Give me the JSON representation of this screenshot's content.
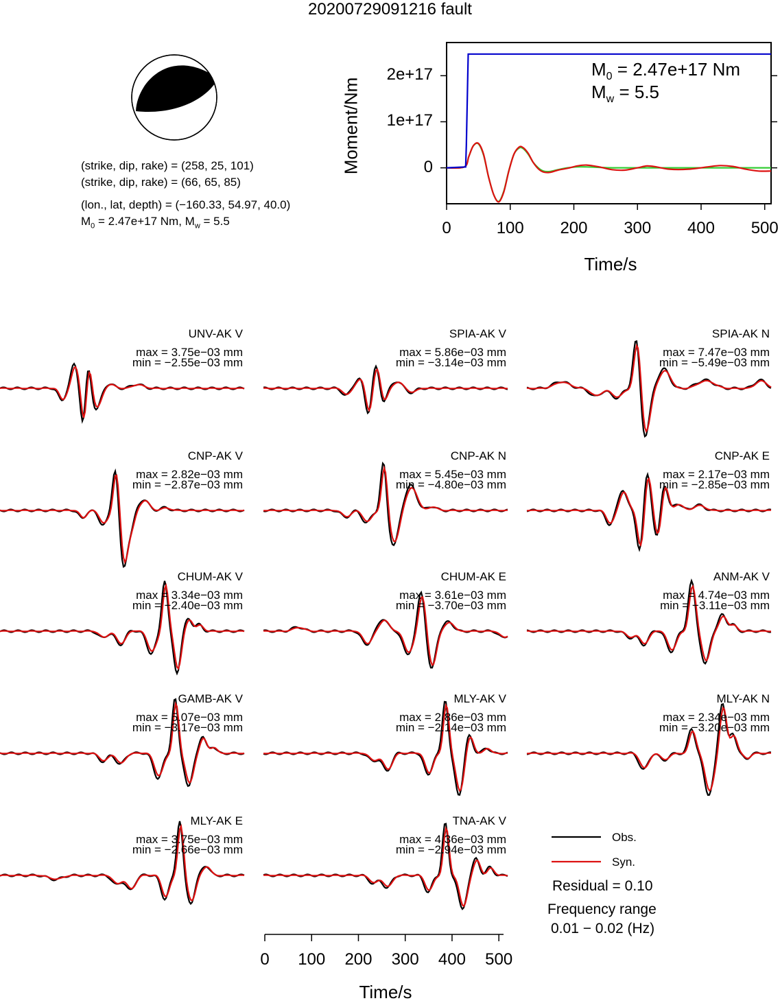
{
  "title": "20200729091216 fault",
  "mechanism": {
    "np1": "(strike, dip, rake) = (258, 25, 101)",
    "np2": "(strike, dip, rake) = (66, 65, 85)",
    "location": "(lon., lat, depth) = (−160.33, 54.97, 40.0)",
    "m0_prefix": "M",
    "m0_sub": "0",
    "m0_rest": " = 2.47e+17 Nm, M",
    "mw_sub": "w",
    "mw_rest": " = 5.5"
  },
  "chart_data": [
    {
      "type": "line",
      "name": "moment-rate",
      "ylabel": "Moment/Nm",
      "xlabel": "Time/s",
      "xlim": [
        0,
        510
      ],
      "ylim": [
        -7.8e+16,
        2.72e+17
      ],
      "xticks": [
        0,
        100,
        200,
        300,
        400,
        500
      ],
      "xtick_labels": [
        "0",
        "100",
        "200",
        "300",
        "400",
        "500"
      ],
      "yticks": [
        0,
        1e+17,
        2e+17
      ],
      "ytick_labels": [
        "0",
        "1e+17",
        "2e+17"
      ],
      "annotation": {
        "m0_prefix": "M",
        "m0_sub": "0",
        "m0_rest": " = 2.47e+17 Nm",
        "mw_prefix": "M",
        "mw_sub": "w",
        "mw_rest": " = 5.5"
      },
      "series": [
        {
          "color": "#0000cc",
          "x": [
            0,
            30,
            31,
            34,
            510
          ],
          "y": [
            0,
            2000000000000000.0,
            5e+16,
            2.47e+17,
            2.47e+17
          ]
        },
        {
          "color": "#33cc33",
          "x": [
            0,
            28,
            35,
            42,
            50,
            58,
            66,
            74,
            82,
            90,
            98,
            106,
            114,
            120,
            128,
            136,
            144,
            152,
            162,
            175,
            190,
            205,
            220,
            240,
            260,
            280,
            300,
            330,
            360,
            400,
            450,
            510
          ],
          "y": [
            0,
            2000000000000000.0,
            2.5e+16,
            4.8e+16,
            5.2e+16,
            2.8e+16,
            -2e+16,
            -5.8e+16,
            -7.3e+16,
            -5e+16,
            -5000000000000000.0,
            3e+16,
            4.3e+16,
            4.2e+16,
            3e+16,
            1.2e+16,
            0.0,
            -7000000000000000.0,
            -8000000000000000.0,
            -4000000000000000.0,
            0.0,
            2000000000000000.0,
            2000000000000000.0,
            1000000000000000.0,
            0.0,
            0.0,
            0.0,
            0.0,
            0.0,
            0.0,
            0.0,
            0.0
          ]
        },
        {
          "color": "#dd1111",
          "x": [
            0,
            28,
            35,
            42,
            50,
            58,
            66,
            74,
            82,
            90,
            98,
            106,
            114,
            120,
            128,
            136,
            144,
            152,
            162,
            175,
            190,
            205,
            220,
            240,
            260,
            280,
            300,
            315,
            330,
            350,
            380,
            410,
            430,
            450,
            470,
            490,
            510
          ],
          "y": [
            0,
            2000000000000000.0,
            2.5e+16,
            4.8e+16,
            5.3e+16,
            3e+16,
            -2e+16,
            -5.8e+16,
            -7.4e+16,
            -5.2e+16,
            -6000000000000000.0,
            3e+16,
            4.5e+16,
            4.4e+16,
            3.2e+16,
            1.2e+16,
            -2000000000000000.0,
            -9000000000000000.0,
            -1e+16,
            -5000000000000000.0,
            -1000000000000000.0,
            4000000000000000.0,
            6000000000000000.0,
            2000000000000000.0,
            -4000000000000000.0,
            -5000000000000000.0,
            0.0,
            4000000000000000.0,
            2000000000000000.0,
            -3000000000000000.0,
            -3000000000000000.0,
            2000000000000000.0,
            5000000000000000.0,
            3000000000000000.0,
            -3000000000000000.0,
            -7000000000000000.0,
            -7000000000000000.0
          ]
        }
      ]
    },
    {
      "type": "line",
      "name": "waveforms",
      "xlabel": "Time/s",
      "xlim": [
        0,
        510
      ],
      "xticks": [
        0,
        100,
        200,
        300,
        400,
        500
      ],
      "xtick_labels": [
        "0",
        "100",
        "200",
        "300",
        "400",
        "500"
      ],
      "legend": {
        "obs": "Obs.",
        "syn": "Syn.",
        "residual": "Residual = 0.10",
        "freq_title": "Frequency range",
        "freq_value": "0.01 − 0.02 (Hz)"
      },
      "series": [
        {
          "name": "UNV-AK V",
          "max": "max = 3.75e−03 mm",
          "min": "min = −2.55e−03 mm"
        },
        {
          "name": "SPIA-AK V",
          "max": "max = 5.86e−03 mm",
          "min": "min = −3.14e−03 mm"
        },
        {
          "name": "SPIA-AK N",
          "max": "max = 7.47e−03 mm",
          "min": "min = −5.49e−03 mm"
        },
        {
          "name": "CNP-AK V",
          "max": "max = 2.82e−03 mm",
          "min": "min = −2.87e−03 mm"
        },
        {
          "name": "CNP-AK N",
          "max": "max = 5.45e−03 mm",
          "min": "min = −4.80e−03 mm"
        },
        {
          "name": "CNP-AK E",
          "max": "max = 2.17e−03 mm",
          "min": "min = −2.85e−03 mm"
        },
        {
          "name": "CHUM-AK V",
          "max": "max = 3.34e−03 mm",
          "min": "min = −2.40e−03 mm"
        },
        {
          "name": "CHUM-AK E",
          "max": "max = 3.61e−03 mm",
          "min": "min = −3.70e−03 mm"
        },
        {
          "name": "ANM-AK V",
          "max": "max = 4.74e−03 mm",
          "min": "min = −3.11e−03 mm"
        },
        {
          "name": "GAMB-AK V",
          "max": "max = 5.07e−03 mm",
          "min": "min = −3.17e−03 mm"
        },
        {
          "name": "MLY-AK V",
          "max": "max = 2.86e−03 mm",
          "min": "min = −2.14e−03 mm"
        },
        {
          "name": "MLY-AK N",
          "max": "max = 2.34e−03 mm",
          "min": "min = −3.20e−03 mm"
        },
        {
          "name": "MLY-AK E",
          "max": "max = 3.75e−03 mm",
          "min": "min = −2.66e−03 mm"
        },
        {
          "name": "TNA-AK V",
          "max": "max = 4.36e−03 mm",
          "min": "min = −2.94e−03 mm"
        }
      ]
    }
  ],
  "colors": {
    "observed": "#000000",
    "synthetic": "#dd1111",
    "cumulative": "#0000cc",
    "moment_rate_obs": "#33cc33",
    "moment_rate_syn": "#dd1111"
  }
}
